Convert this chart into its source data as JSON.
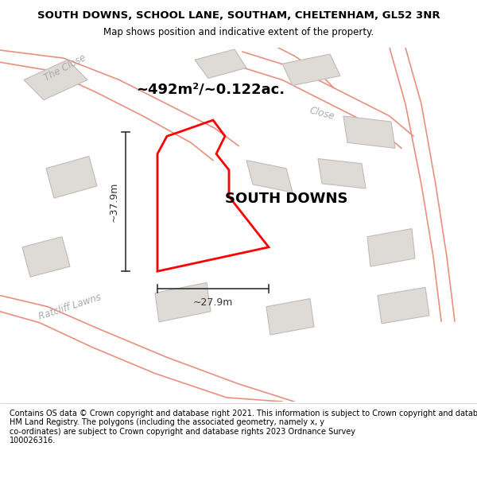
{
  "title": "SOUTH DOWNS, SCHOOL LANE, SOUTHAM, CHELTENHAM, GL52 3NR",
  "subtitle": "Map shows position and indicative extent of the property.",
  "property_label": "SOUTH DOWNS",
  "area_label": "~492m²/~0.122ac.",
  "width_label": "~27.9m",
  "height_label": "~37.9m",
  "footer": "Contains OS data © Crown copyright and database right 2021. This information is subject to Crown copyright and database rights 2023 and is reproduced with the permission of\nHM Land Registry. The polygons (including the associated geometry, namely x, y\nco-ordinates) are subject to Crown copyright and database rights 2023 Ordnance Survey\n100026316.",
  "bg_color": "#f0ece8",
  "road_color": "#ffffff",
  "building_fill": "#dedad6",
  "building_edge": "#c0bbb8",
  "road_outline": "#e89080",
  "property_edge": "#ff0000",
  "dim_color": "#333333",
  "title_color": "#000000",
  "street_label_color": "#aaaaaa",
  "property_label_color": "#000000",
  "figsize": [
    6.0,
    6.25
  ],
  "dpi": 100
}
